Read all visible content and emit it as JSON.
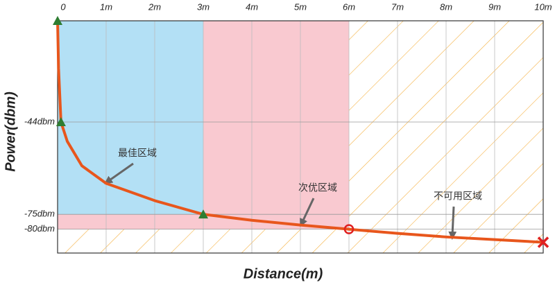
{
  "chart_data": {
    "type": "line",
    "xlabel": "Distance(m)",
    "ylabel": "Power(dbm)",
    "xlim": [
      0,
      10
    ],
    "ylim": [
      -88,
      -10
    ],
    "xticks": [
      0,
      {
        "value": 1,
        "label": "1m"
      },
      {
        "value": 2,
        "label": "2m"
      },
      {
        "value": 3,
        "label": "3m"
      },
      {
        "value": 4,
        "label": "4m"
      },
      {
        "value": 5,
        "label": "5m"
      },
      {
        "value": 6,
        "label": "6m"
      },
      {
        "value": 7,
        "label": "7m"
      },
      {
        "value": 8,
        "label": "8m"
      },
      {
        "value": 9,
        "label": "9m"
      },
      {
        "value": 10,
        "label": "10m"
      }
    ],
    "yticks": [
      {
        "value": -44,
        "label": "-44dbm"
      },
      {
        "value": -75,
        "label": "-75dbm"
      },
      {
        "value": -80,
        "label": "-80dbm"
      }
    ],
    "grid": true,
    "series": [
      {
        "color": "#e8561c",
        "x": [
          0,
          0.02,
          0.07,
          0.2,
          0.5,
          1,
          2,
          3,
          4,
          5,
          6,
          7,
          8,
          9,
          10
        ],
        "values": [
          -10,
          -26,
          -44,
          -50.5,
          -58.7,
          -64.6,
          -70.4,
          -75,
          -77,
          -78.6,
          -80,
          -81.4,
          -82.6,
          -83.5,
          -84.4
        ]
      }
    ],
    "zones": [
      {
        "label": "不可用区域",
        "xrange": [
          0,
          10
        ],
        "ymin": -88,
        "color": "#f5b041"
      },
      {
        "label": "次优区域",
        "xrange": [
          0,
          6
        ],
        "ymin": -80,
        "color": "#f9c9d0"
      },
      {
        "label": "最佳区域",
        "xrange": [
          0,
          3
        ],
        "ymin": -75,
        "color": "#b3e0f5"
      }
    ],
    "markers": [
      {
        "shape": "triangle",
        "x": 0,
        "y": -10,
        "color": "#2e7d32"
      },
      {
        "shape": "triangle",
        "x": 0.07,
        "y": -44,
        "color": "#2e7d32"
      },
      {
        "shape": "triangle",
        "x": 3,
        "y": -75,
        "color": "#2e7d32"
      },
      {
        "shape": "circle",
        "x": 6,
        "y": -80,
        "color": "#e02020"
      },
      {
        "shape": "cross",
        "x": 10,
        "y": -84.4,
        "color": "#e02020"
      }
    ]
  }
}
